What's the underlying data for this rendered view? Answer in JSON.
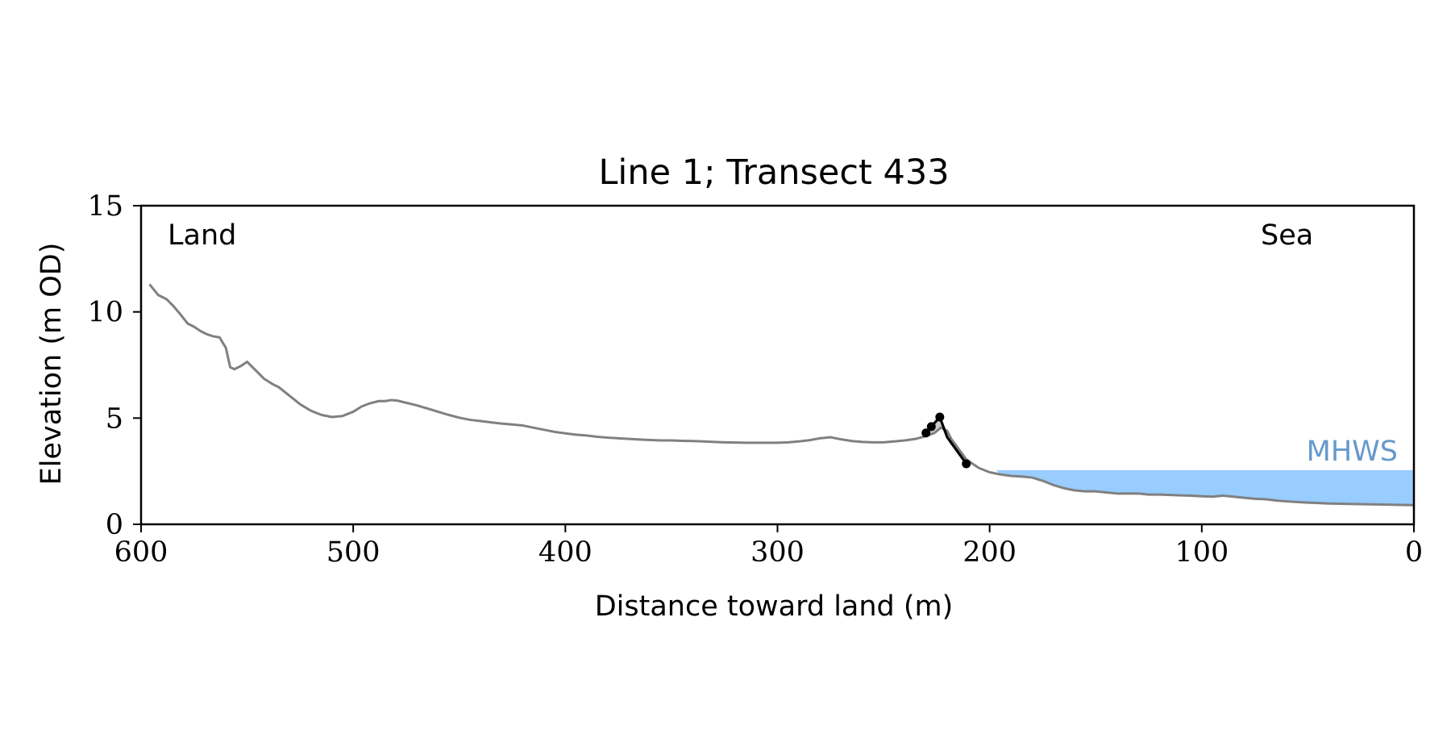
{
  "chart_data": {
    "type": "line",
    "title": "Line 1; Transect 433",
    "xlabel": "Distance toward land (m)",
    "ylabel": "Elevation (m OD)",
    "xlim": [
      600,
      0
    ],
    "ylim": [
      0,
      15
    ],
    "x_ticks": [
      600,
      500,
      400,
      300,
      200,
      100,
      0
    ],
    "y_ticks": [
      0,
      5,
      10,
      15
    ],
    "grid": false,
    "annotations": {
      "left": "Land",
      "right": "Sea",
      "water_level": "MHWS"
    },
    "colors": {
      "profile": "#808080",
      "feature": "#000000",
      "feature_fill": "#cccccc",
      "water": "#99ccff",
      "water_label": "#6699cc"
    },
    "water_level": {
      "name": "MHWS",
      "elevation": 2.55,
      "x_from": 197,
      "x_to": 0
    },
    "profile": {
      "x": [
        596,
        592,
        588,
        585,
        582,
        578,
        575,
        572,
        569,
        566,
        563,
        560,
        558,
        556,
        553,
        550,
        548,
        545,
        542,
        538,
        535,
        530,
        525,
        520,
        515,
        510,
        505,
        500,
        496,
        492,
        488,
        485,
        482,
        479,
        475,
        470,
        465,
        460,
        455,
        450,
        445,
        440,
        435,
        430,
        425,
        420,
        415,
        410,
        405,
        400,
        395,
        390,
        385,
        380,
        375,
        370,
        365,
        360,
        355,
        350,
        345,
        340,
        335,
        330,
        325,
        320,
        315,
        310,
        305,
        300,
        295,
        290,
        285,
        280,
        275,
        270,
        265,
        260,
        255,
        250,
        245,
        240,
        235,
        230,
        226,
        223,
        220,
        218,
        215,
        211,
        208,
        205,
        200,
        195,
        190,
        185,
        180,
        175,
        170,
        165,
        160,
        155,
        150,
        145,
        140,
        135,
        130,
        125,
        120,
        115,
        110,
        105,
        100,
        95,
        90,
        85,
        80,
        75,
        70,
        65,
        60,
        55,
        50,
        45,
        40,
        35,
        30,
        25,
        20,
        15,
        10,
        5,
        0
      ],
      "y": [
        11.3,
        10.8,
        10.6,
        10.3,
        9.95,
        9.45,
        9.3,
        9.1,
        8.95,
        8.85,
        8.8,
        8.3,
        7.4,
        7.3,
        7.45,
        7.65,
        7.45,
        7.15,
        6.85,
        6.6,
        6.45,
        6.05,
        5.65,
        5.35,
        5.15,
        5.05,
        5.1,
        5.3,
        5.55,
        5.7,
        5.8,
        5.8,
        5.85,
        5.82,
        5.72,
        5.6,
        5.45,
        5.3,
        5.15,
        5.02,
        4.92,
        4.86,
        4.8,
        4.74,
        4.7,
        4.65,
        4.55,
        4.45,
        4.35,
        4.28,
        4.22,
        4.18,
        4.12,
        4.08,
        4.05,
        4.02,
        3.99,
        3.97,
        3.95,
        3.95,
        3.93,
        3.92,
        3.9,
        3.88,
        3.86,
        3.85,
        3.84,
        3.84,
        3.84,
        3.84,
        3.86,
        3.9,
        3.96,
        4.05,
        4.1,
        4.0,
        3.92,
        3.88,
        3.86,
        3.86,
        3.9,
        3.95,
        4.02,
        4.15,
        4.3,
        4.55,
        4.4,
        4.0,
        3.6,
        3.05,
        2.85,
        2.65,
        2.45,
        2.35,
        2.28,
        2.25,
        2.2,
        2.05,
        1.85,
        1.7,
        1.6,
        1.55,
        1.55,
        1.5,
        1.45,
        1.45,
        1.45,
        1.4,
        1.4,
        1.38,
        1.36,
        1.35,
        1.32,
        1.3,
        1.35,
        1.3,
        1.25,
        1.2,
        1.18,
        1.12,
        1.08,
        1.05,
        1.02,
        1.0,
        0.98,
        0.97,
        0.96,
        0.95,
        0.94,
        0.93,
        0.92,
        0.91,
        0.9
      ]
    },
    "feature": {
      "x": [
        230,
        227.5,
        223.5,
        220,
        211
      ],
      "y": [
        4.3,
        4.6,
        5.05,
        4.1,
        2.85
      ],
      "marker_x": [
        230,
        227.5,
        223.5,
        211
      ],
      "marker_y": [
        4.3,
        4.6,
        5.05,
        2.85
      ]
    }
  }
}
